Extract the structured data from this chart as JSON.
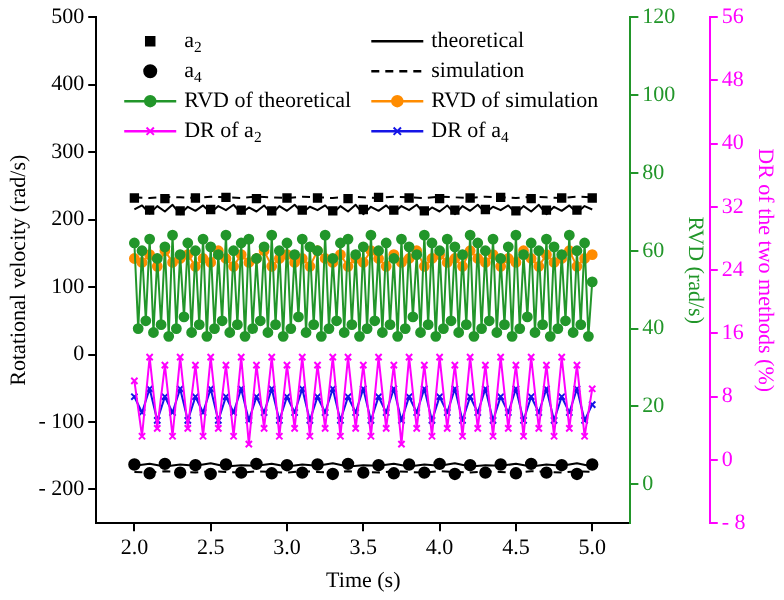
{
  "chart_data": {
    "type": "line",
    "xlabel": "Time (s)",
    "ylabel": "Rotational velocity (rad/s)",
    "y2label": "RVD (rad/s)",
    "y3label": "DR of the two methods (%)",
    "x": [
      2,
      2.05,
      2.1,
      2.15,
      2.2,
      2.25,
      2.3,
      2.35,
      2.4,
      2.45,
      2.5,
      2.55,
      2.6,
      2.65,
      2.7,
      2.75,
      2.8,
      2.85,
      2.9,
      2.95,
      3,
      3.05,
      3.1,
      3.15,
      3.2,
      3.25,
      3.3,
      3.35,
      3.4,
      3.45,
      3.5,
      3.55,
      3.6,
      3.65,
      3.7,
      3.75,
      3.8,
      3.85,
      3.9,
      3.95,
      4,
      4.05,
      4.1,
      4.15,
      4.2,
      4.25,
      4.3,
      4.35,
      4.4,
      4.45,
      4.5,
      4.55,
      4.6,
      4.65,
      4.7,
      4.75,
      4.8,
      4.85,
      4.9,
      4.95,
      5
    ],
    "xlim": [
      1.75,
      5.25
    ],
    "xticks": [
      {
        "value": 2,
        "label": "2.0"
      },
      {
        "value": 2.5,
        "label": "2.5"
      },
      {
        "value": 3,
        "label": "3.0"
      },
      {
        "value": 3.5,
        "label": "3.5"
      },
      {
        "value": 4,
        "label": "4.0"
      },
      {
        "value": 4.5,
        "label": "4.5"
      },
      {
        "value": 5,
        "label": "5.0"
      }
    ],
    "ylim": [
      -250,
      500
    ],
    "yticks": [
      {
        "value": -200,
        "label": "- 200"
      },
      {
        "value": -100,
        "label": "- 100"
      },
      0,
      100,
      200,
      300,
      400,
      500
    ],
    "y2lim": [
      -10,
      120
    ],
    "y2ticks": [
      0,
      20,
      40,
      60,
      80,
      100,
      120
    ],
    "y3lim": [
      -8,
      56
    ],
    "y3ticks": [
      {
        "value": -8,
        "label": "- 8"
      },
      0,
      8,
      16,
      24,
      32,
      40,
      48,
      56
    ],
    "grid": false,
    "legend": "top",
    "series": [
      {
        "name": "a$_{2}$",
        "type": "scatter",
        "marker": "square",
        "color": "#000000",
        "x": [
          2,
          2.1,
          2.2,
          2.3,
          2.4,
          2.5,
          2.6,
          2.7,
          2.8,
          2.9,
          3,
          3.1,
          3.2,
          3.3,
          3.4,
          3.5,
          3.6,
          3.7,
          3.8,
          3.9,
          4,
          4.1,
          4.2,
          4.3,
          4.4,
          4.5,
          4.6,
          4.7,
          4.8,
          4.9,
          5
        ],
        "values": [
          232,
          214,
          231,
          213,
          232,
          215,
          233,
          214,
          231,
          213,
          232,
          214,
          232,
          213,
          231,
          215,
          233,
          214,
          232,
          213,
          231,
          214,
          232,
          215,
          233,
          213,
          231,
          214,
          232,
          214,
          232
        ]
      },
      {
        "name": "theoretical",
        "marker": "none",
        "line_style": "solid",
        "color": "#000000",
        "values": [
          215,
          221,
          209,
          220,
          212,
          222,
          208,
          219,
          213,
          221,
          210,
          220,
          214,
          222,
          209,
          218,
          212,
          221,
          208,
          220,
          213,
          222,
          210,
          219,
          214,
          221,
          209,
          220,
          212,
          222,
          208,
          219,
          213,
          221,
          210,
          220,
          214,
          222,
          209,
          218,
          212,
          221,
          208,
          220,
          213,
          222,
          210,
          219,
          214,
          221,
          209,
          220,
          212,
          222,
          208,
          219,
          213,
          221,
          210,
          220,
          215
        ]
      },
      {
        "name": "a$_{4}$",
        "type": "scatter",
        "marker": "circle",
        "color": "#000000",
        "x": [
          2,
          2.1,
          2.2,
          2.3,
          2.4,
          2.5,
          2.6,
          2.7,
          2.8,
          2.9,
          3,
          3.1,
          3.2,
          3.3,
          3.4,
          3.5,
          3.6,
          3.7,
          3.8,
          3.9,
          4,
          4.1,
          4.2,
          4.3,
          4.4,
          4.5,
          4.6,
          4.7,
          4.8,
          4.9,
          5
        ],
        "values": [
          -163,
          -176,
          -162,
          -175,
          -164,
          -177,
          -163,
          -175,
          -162,
          -176,
          -164,
          -175,
          -163,
          -177,
          -162,
          -175,
          -164,
          -176,
          -163,
          -175,
          -162,
          -177,
          -164,
          -175,
          -163,
          -176,
          -162,
          -175,
          -164,
          -177,
          -163
        ]
      },
      {
        "name": "simulation",
        "marker": "none",
        "line_style": "dashed",
        "color": "#000000",
        "x": [
          2,
          2.1,
          2.2,
          2.3,
          2.4,
          2.5,
          2.6,
          2.7,
          2.8,
          2.9,
          3,
          3.1,
          3.2,
          3.3,
          3.4,
          3.5,
          3.6,
          3.7,
          3.8,
          3.9,
          4,
          4.1,
          4.2,
          4.3,
          4.4,
          4.5,
          4.6,
          4.7,
          4.8,
          4.9,
          5
        ],
        "values": [
          233,
          232,
          234,
          233,
          232,
          234,
          233,
          232,
          234,
          233,
          232,
          234,
          233,
          232,
          234,
          233,
          232,
          234,
          233,
          232,
          234,
          233,
          232,
          234,
          233,
          232,
          234,
          233,
          232,
          234,
          233
        ]
      },
      {
        "name": "RVD of theoretical",
        "marker": "circle",
        "line_style": "solid",
        "axis": "y2",
        "color": "#22962a",
        "x": [
          2,
          2.025,
          2.05,
          2.075,
          2.1,
          2.125,
          2.15,
          2.175,
          2.2,
          2.225,
          2.25,
          2.275,
          2.3,
          2.325,
          2.35,
          2.375,
          2.4,
          2.425,
          2.45,
          2.475,
          2.5,
          2.525,
          2.55,
          2.575,
          2.6,
          2.625,
          2.65,
          2.675,
          2.7,
          2.725,
          2.75,
          2.775,
          2.8,
          2.825,
          2.85,
          2.875,
          2.9,
          2.925,
          2.95,
          2.975,
          3,
          3.025,
          3.05,
          3.075,
          3.1,
          3.125,
          3.15,
          3.175,
          3.2,
          3.225,
          3.25,
          3.275,
          3.3,
          3.325,
          3.35,
          3.375,
          3.4,
          3.425,
          3.45,
          3.475,
          3.5,
          3.525,
          3.55,
          3.575,
          3.6,
          3.625,
          3.65,
          3.675,
          3.7,
          3.725,
          3.75,
          3.775,
          3.8,
          3.825,
          3.85,
          3.875,
          3.9,
          3.925,
          3.95,
          3.975,
          4,
          4.025,
          4.05,
          4.075,
          4.1,
          4.125,
          4.15,
          4.175,
          4.2,
          4.225,
          4.25,
          4.275,
          4.3,
          4.325,
          4.35,
          4.375,
          4.4,
          4.425,
          4.45,
          4.475,
          4.5,
          4.525,
          4.55,
          4.575,
          4.6,
          4.625,
          4.65,
          4.675,
          4.7,
          4.725,
          4.75,
          4.775,
          4.8,
          4.825,
          4.85,
          4.875,
          4.9,
          4.925,
          4.95,
          4.975,
          5
        ],
        "values": [
          62,
          40,
          60,
          42,
          63,
          39,
          58,
          41,
          61,
          38,
          64,
          40,
          59,
          43,
          62,
          39,
          60,
          41,
          63,
          38,
          61,
          40,
          59,
          42,
          64,
          39,
          60,
          41,
          62,
          38,
          63,
          40,
          58,
          42,
          61,
          39,
          64,
          41,
          60,
          38,
          62,
          40,
          59,
          43,
          63,
          39,
          61,
          41,
          60,
          38,
          64,
          40,
          58,
          42,
          62,
          39,
          63,
          41,
          59,
          38,
          61,
          40,
          64,
          42,
          60,
          39,
          62,
          41,
          58,
          38,
          63,
          40,
          61,
          43,
          59,
          39,
          64,
          41,
          62,
          38,
          60,
          40,
          63,
          42,
          61,
          39,
          59,
          41,
          64,
          38,
          62,
          40,
          60,
          42,
          63,
          39,
          58,
          41,
          61,
          38,
          64,
          40,
          59,
          43,
          62,
          39,
          60,
          41,
          63,
          38,
          61,
          40,
          59,
          42,
          64,
          39,
          60,
          41,
          62,
          38,
          52
        ]
      },
      {
        "name": "RVD of simulation",
        "marker": "circle",
        "line_style": "solid",
        "axis": "y2",
        "color": "#ff8c00",
        "values": [
          58,
          57,
          59,
          56,
          60,
          57,
          58,
          59,
          56,
          58,
          57,
          60,
          58,
          56,
          59,
          57,
          58,
          60,
          56,
          58,
          59,
          57,
          58,
          56,
          60,
          58,
          57,
          59,
          56,
          58,
          57,
          60,
          58,
          56,
          59,
          57,
          58,
          60,
          56,
          58,
          59,
          57,
          58,
          56,
          60,
          58,
          57,
          59,
          56,
          58,
          57,
          60,
          58,
          56,
          59,
          57,
          58,
          60,
          56,
          58,
          59
        ]
      },
      {
        "name": "DR of a$_{2}$",
        "marker": "cross",
        "line_style": "solid",
        "axis": "y3",
        "color": "#ff00ff",
        "values": [
          10,
          3,
          13,
          4,
          12,
          3,
          13,
          4,
          12,
          3,
          13,
          4,
          12,
          3,
          13,
          2,
          12,
          4,
          13,
          3,
          12,
          4,
          13,
          3,
          12,
          4,
          13,
          3,
          13,
          4,
          12,
          3,
          13,
          4,
          12,
          2,
          13,
          4,
          12,
          3,
          13,
          4,
          12,
          3,
          13,
          4,
          12,
          3,
          13,
          4,
          12,
          3,
          13,
          4,
          12,
          3,
          13,
          4,
          12,
          3,
          9
        ]
      },
      {
        "name": "DR of a$_{4}$",
        "marker": "cross",
        "line_style": "solid",
        "axis": "y3",
        "color": "#1515e6",
        "values": [
          8,
          6,
          9,
          5,
          8,
          6,
          9,
          5,
          8,
          6,
          9,
          5,
          8,
          6,
          9,
          5,
          8,
          6,
          9,
          5,
          8,
          6,
          9,
          5,
          8,
          6,
          9,
          5,
          8,
          6,
          9,
          5,
          8,
          6,
          9,
          5,
          8,
          6,
          9,
          5,
          8,
          6,
          9,
          5,
          8,
          6,
          9,
          5,
          8,
          6,
          9,
          5,
          8,
          6,
          9,
          5,
          8,
          6,
          9,
          5,
          7
        ]
      },
      {
        "marker": "none",
        "line_style": "solid",
        "color": "#000000",
        "x": [
          2,
          2.1,
          2.2,
          2.3,
          2.4,
          2.5,
          2.6,
          2.7,
          2.8,
          2.9,
          3,
          3.1,
          3.2,
          3.3,
          3.4,
          3.5,
          3.6,
          3.7,
          3.8,
          3.9,
          4,
          4.1,
          4.2,
          4.3,
          4.4,
          4.5,
          4.6,
          4.7,
          4.8,
          4.9,
          5
        ],
        "values": [
          -165,
          -162,
          -166,
          -163,
          -165,
          -161,
          -166,
          -164,
          -165,
          -162,
          -166,
          -163,
          -165,
          -161,
          -166,
          -164,
          -165,
          -162,
          -166,
          -163,
          -165,
          -161,
          -166,
          -164,
          -165,
          -162,
          -166,
          -163,
          -165,
          -161,
          -166
        ]
      },
      {
        "marker": "none",
        "line_style": "dashed",
        "color": "#000000",
        "x": [
          2,
          2.1,
          2.2,
          2.3,
          2.4,
          2.5,
          2.6,
          2.7,
          2.8,
          2.9,
          3,
          3.1,
          3.2,
          3.3,
          3.4,
          3.5,
          3.6,
          3.7,
          3.8,
          3.9,
          4,
          4.1,
          4.2,
          4.3,
          4.4,
          4.5,
          4.6,
          4.7,
          4.8,
          4.9,
          5
        ],
        "values": [
          -174,
          -175,
          -173,
          -174,
          -175,
          -173,
          -174,
          -175,
          -173,
          -174,
          -175,
          -173,
          -174,
          -175,
          -173,
          -174,
          -175,
          -173,
          -174,
          -175,
          -173,
          -174,
          -175,
          -173,
          -174,
          -175,
          -173,
          -174,
          -175,
          -173,
          -174
        ]
      }
    ]
  }
}
